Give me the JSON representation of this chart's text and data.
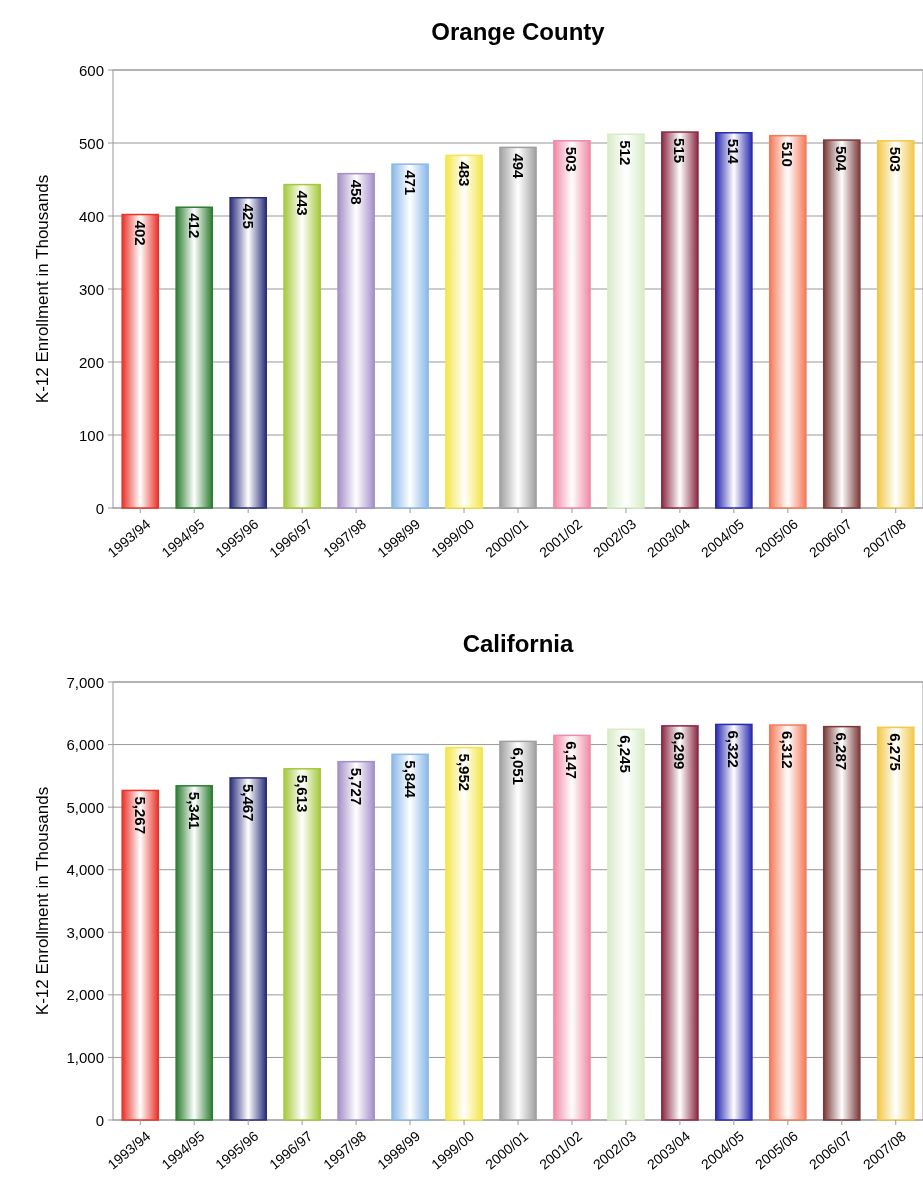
{
  "chart_data": [
    {
      "type": "bar",
      "title": "Orange County",
      "ylabel": "K-12 Enrollment in Thousands",
      "categories": [
        "1993/94",
        "1994/95",
        "1995/96",
        "1996/97",
        "1997/98",
        "1998/99",
        "1999/00",
        "2000/01",
        "2001/02",
        "2002/03",
        "2003/04",
        "2004/05",
        "2005/06",
        "2006/07",
        "2007/08"
      ],
      "values": [
        402,
        412,
        425,
        443,
        458,
        471,
        483,
        494,
        503,
        512,
        515,
        514,
        510,
        504,
        503
      ],
      "value_labels": [
        "402",
        "412",
        "425",
        "443",
        "458",
        "471",
        "483",
        "494",
        "503",
        "512",
        "515",
        "514",
        "510",
        "504",
        "503"
      ],
      "colors": [
        "#e8332a",
        "#2e7d32",
        "#2b2e7a",
        "#a6c83c",
        "#a58fc8",
        "#8bb8e8",
        "#f2e64a",
        "#a0a0a0",
        "#f08aa8",
        "#d8ecc8",
        "#8a2a45",
        "#2a2ab0",
        "#f47a5a",
        "#7a3a3a",
        "#f2c84a"
      ],
      "ylim": [
        0,
        600
      ],
      "yticks": [
        0,
        100,
        200,
        300,
        400,
        500,
        600
      ],
      "grid": "y"
    },
    {
      "type": "bar",
      "title": "California",
      "ylabel": "K-12 Enrollment in Thousands",
      "categories": [
        "1993/94",
        "1994/95",
        "1995/96",
        "1996/97",
        "1997/98",
        "1998/99",
        "1999/00",
        "2000/01",
        "2001/02",
        "2002/03",
        "2003/04",
        "2004/05",
        "2005/06",
        "2006/07",
        "2007/08"
      ],
      "values": [
        5267,
        5341,
        5467,
        5613,
        5727,
        5844,
        5952,
        6051,
        6147,
        6245,
        6299,
        6322,
        6312,
        6287,
        6275
      ],
      "value_labels": [
        "5,267",
        "5,341",
        "5,467",
        "5,613",
        "5,727",
        "5,844",
        "5,952",
        "6,051",
        "6,147",
        "6,245",
        "6,299",
        "6,322",
        "6,312",
        "6,287",
        "6,275"
      ],
      "colors": [
        "#e8332a",
        "#2e7d32",
        "#2b2e7a",
        "#a6c83c",
        "#a58fc8",
        "#8bb8e8",
        "#f2e64a",
        "#a0a0a0",
        "#f08aa8",
        "#d8ecc8",
        "#8a2a45",
        "#2a2ab0",
        "#f47a5a",
        "#7a3a3a",
        "#f2c84a"
      ],
      "ylim": [
        0,
        7000
      ],
      "yticks": [
        0,
        {
          "value": 1000,
          "label": "1,000"
        },
        {
          "value": 2000,
          "label": "2,000"
        },
        {
          "value": 3000,
          "label": "3,000"
        },
        {
          "value": 4000,
          "label": "4,000"
        },
        {
          "value": 5000,
          "label": "5,000"
        },
        {
          "value": 6000,
          "label": "6,000"
        },
        {
          "value": 7000,
          "label": "7,000"
        }
      ],
      "grid": "y"
    }
  ]
}
